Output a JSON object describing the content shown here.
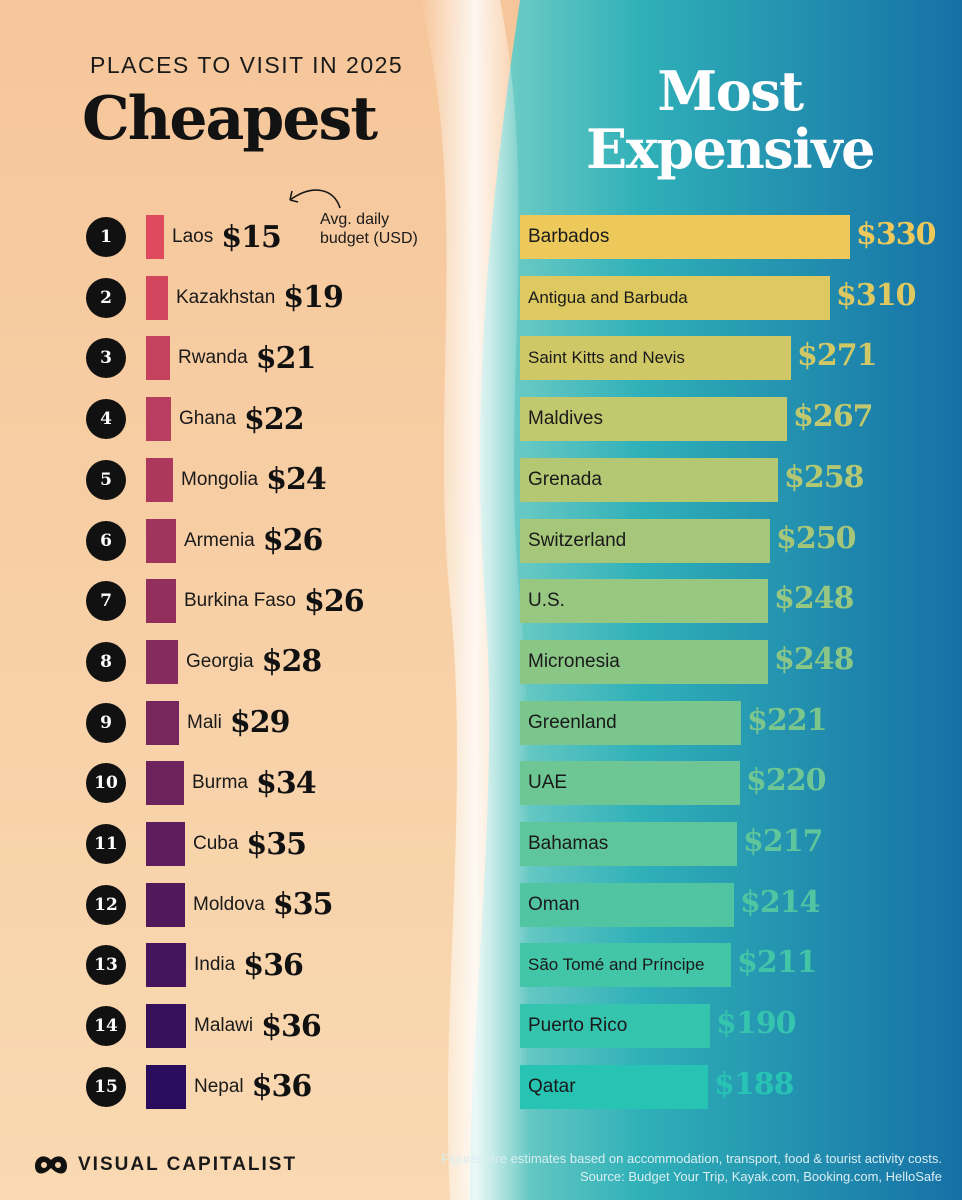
{
  "header": {
    "supertitle": "PLACES TO VISIT IN 2025",
    "left_title": "Cheapest",
    "right_title_line1": "Most",
    "right_title_line2": "Expensive"
  },
  "annotation": {
    "line1": "Avg. daily",
    "line2": "budget (USD)"
  },
  "footer": {
    "logo_text": "VISUAL CAPITALIST",
    "note": "Figures are estimates based on accommodation, transport, food & tourist activity costs.",
    "source": "Source: Budget Your Trip, Kayak.com, Booking.com, HelloSafe"
  },
  "colors": {
    "left_background": "#f6c99c",
    "right_background": "#1f8cb0",
    "left_bar_top": "#e04a5e",
    "left_bar_bottom": "#2a0c5c",
    "right_bar_top": "#ecc95a",
    "right_bar_bottom": "#27c4b4"
  },
  "chart_data": [
    {
      "type": "bar",
      "title": "Cheapest",
      "unit": "USD",
      "ranks": [
        "1",
        "2",
        "3",
        "4",
        "5",
        "6",
        "7",
        "8",
        "9",
        "10",
        "11",
        "12",
        "13",
        "14",
        "15"
      ],
      "categories": [
        "Laos",
        "Kazakhstan",
        "Rwanda",
        "Ghana",
        "Mongolia",
        "Armenia",
        "Burkina Faso",
        "Georgia",
        "Mali",
        "Burma",
        "Cuba",
        "Moldova",
        "India",
        "Malawi",
        "Nepal"
      ],
      "values": [
        15,
        19,
        21,
        22,
        24,
        26,
        26,
        28,
        29,
        34,
        35,
        35,
        36,
        36,
        36
      ],
      "labels": [
        "$15",
        "$19",
        "$21",
        "$22",
        "$24",
        "$26",
        "$26",
        "$28",
        "$29",
        "$34",
        "$35",
        "$35",
        "$36",
        "$36",
        "$36"
      ]
    },
    {
      "type": "bar",
      "title": "Most Expensive",
      "unit": "USD",
      "categories": [
        "Barbados",
        "Antigua and Barbuda",
        "Saint Kitts and Nevis",
        "Maldives",
        "Grenada",
        "Switzerland",
        "U.S.",
        "Micronesia",
        "Greenland",
        "UAE",
        "Bahamas",
        "Oman",
        "São Tomé and Príncipe",
        "Puerto Rico",
        "Qatar"
      ],
      "values": [
        330,
        310,
        271,
        267,
        258,
        250,
        248,
        248,
        221,
        220,
        217,
        214,
        211,
        190,
        188
      ],
      "labels": [
        "$330",
        "$310",
        "$271",
        "$267",
        "$258",
        "$250",
        "$248",
        "$248",
        "$221",
        "$220",
        "$217",
        "$214",
        "$211",
        "$190",
        "$188"
      ]
    }
  ]
}
